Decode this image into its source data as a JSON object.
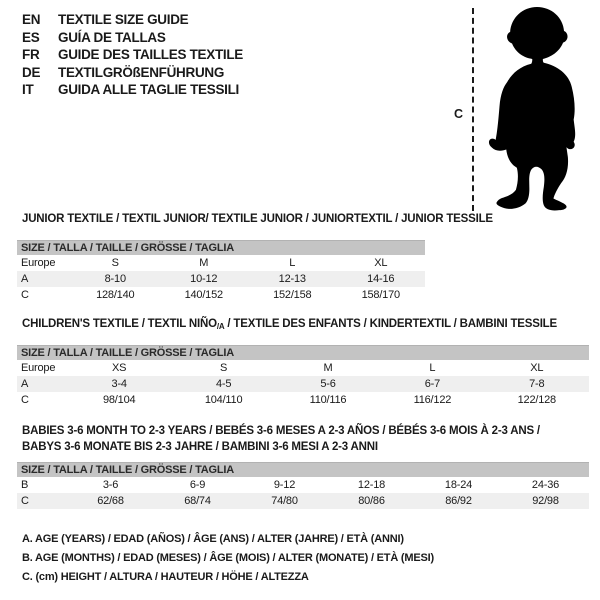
{
  "languages": [
    {
      "code": "EN",
      "label": "TEXTILE SIZE GUIDE"
    },
    {
      "code": "ES",
      "label": "GUÍA DE TALLAS"
    },
    {
      "code": "FR",
      "label": "GUIDE DES TAILLES TEXTILE"
    },
    {
      "code": "DE",
      "label": "TEXTILGRÖßENFÜHRUNG"
    },
    {
      "code": "IT",
      "label": "GUIDA ALLE TAGLIE TESSILI"
    }
  ],
  "figure": {
    "measure_label": "C"
  },
  "colors": {
    "header_bar": "#c4c4c4",
    "shaded_row": "#efefef",
    "text": "#1a1a1a"
  },
  "tables": [
    {
      "title": "JUNIOR TEXTILE / TEXTIL JUNIOR/ TEXTILE JUNIOR / JUNIORTEXTIL / JUNIOR TESSILE",
      "size_header": "SIZE / TALLA / TAILLE / GRÖSSE / TAGLIA",
      "rows": [
        [
          "Europe",
          "S",
          "M",
          "L",
          "XL"
        ],
        [
          "A",
          "8-10",
          "10-12",
          "12-13",
          "14-16"
        ],
        [
          "C",
          "128/140",
          "140/152",
          "152/158",
          "158/170"
        ]
      ]
    },
    {
      "title_parts": {
        "pre": "CHILDREN'S TEXTILE / TEXTIL NIÑO",
        "sub": "/A",
        "post": " / TEXTILE DES ENFANTS / KINDERTEXTIL / BAMBINI TESSILE"
      },
      "size_header": "SIZE / TALLA / TAILLE / GRÖSSE / TAGLIA",
      "rows": [
        [
          "Europe",
          "XS",
          "S",
          "M",
          "L",
          "XL"
        ],
        [
          "A",
          "3-4",
          "4-5",
          "5-6",
          "6-7",
          "7-8"
        ],
        [
          "C",
          "98/104",
          "104/110",
          "110/116",
          "116/122",
          "122/128"
        ]
      ]
    },
    {
      "title_line1": "BABIES 3-6 MONTH TO 2-3 YEARS / BEBÉS 3-6 MESES A 2-3 AÑOS / BÉBÉS 3-6 MOIS À 2-3 ANS /",
      "title_line2": "BABYS 3-6 MONATE BIS 2-3 JAHRE / BAMBINI 3-6 MESI A 2-3 ANNI",
      "size_header": "SIZE / TALLA / TAILLE / GRÖSSE / TAGLIA",
      "rows": [
        [
          "B",
          "3-6",
          "6-9",
          "9-12",
          "12-18",
          "18-24",
          "24-36"
        ],
        [
          "C",
          "62/68",
          "68/74",
          "74/80",
          "80/86",
          "86/92",
          "92/98"
        ]
      ]
    }
  ],
  "footnotes": [
    "A. AGE (YEARS) / EDAD (AÑOS) / ÂGE (ANS) / ALTER (JAHRE) / ETÀ (ANNI)",
    "B. AGE (MONTHS) / EDAD (MESES) / ÂGE (MOIS) / ALTER (MONATE) / ETÀ (MESI)",
    "C. (cm) HEIGHT / ALTURA / HAUTEUR / HÖHE / ALTEZZA"
  ]
}
